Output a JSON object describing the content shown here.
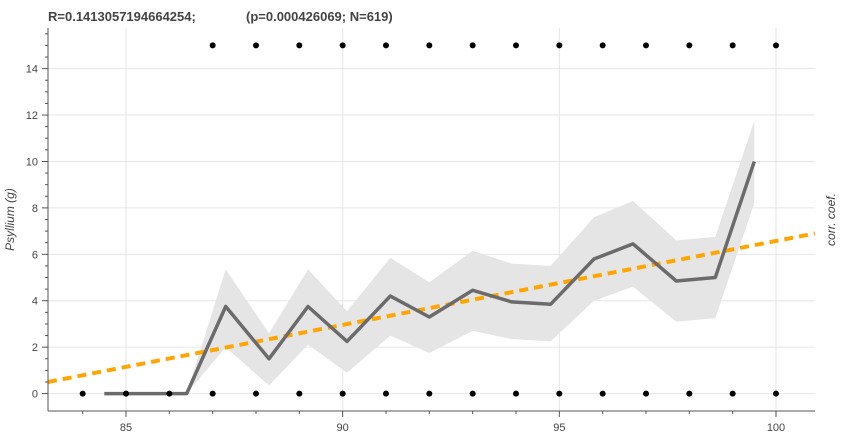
{
  "title": {
    "left": "R=0.1413057194664254;",
    "right": "(p=0.000426069; N=619)"
  },
  "chart_data": {
    "type": "line",
    "title": "R=0.1413057194664254;  (p=0.000426069; N=619)",
    "xlabel": "",
    "ylabel": "Psyllium (g)",
    "right_label": "corr. coef.",
    "xlim": [
      83.2,
      100.9
    ],
    "ylim": [
      -0.75,
      15.75
    ],
    "x_ticks": [
      85,
      90,
      95,
      100
    ],
    "y_ticks": [
      0,
      2,
      4,
      6,
      8,
      10,
      12,
      14
    ],
    "grid": true,
    "colors": {
      "mean_line": "#6b6b6b",
      "band": "#e5e5e5",
      "trend": "#ffa500",
      "points": "#000000",
      "grid": "#e6e6e6",
      "axis": "#555555"
    },
    "series": [
      {
        "kind": "mean_line",
        "x": [
          84.5,
          85.4,
          86.4,
          87.3,
          88.3,
          89.2,
          90.1,
          91.1,
          92.0,
          93.0,
          93.9,
          94.8,
          95.8,
          96.7,
          97.7,
          98.6,
          99.5
        ],
        "y": [
          0,
          0,
          0,
          3.75,
          1.5,
          3.75,
          2.25,
          4.2,
          3.3,
          4.45,
          3.95,
          3.85,
          5.8,
          6.45,
          4.85,
          5.0,
          10.0
        ]
      },
      {
        "kind": "band",
        "x": [
          84.5,
          85.4,
          86.4,
          87.3,
          88.3,
          89.2,
          90.1,
          91.1,
          92.0,
          93.0,
          93.9,
          94.8,
          95.8,
          96.7,
          97.7,
          98.6,
          99.5
        ],
        "lower": [
          0,
          0,
          0,
          2.0,
          0.35,
          2.1,
          0.9,
          2.5,
          1.75,
          2.7,
          2.35,
          2.25,
          4.0,
          4.6,
          3.1,
          3.25,
          8.2
        ],
        "upper": [
          0,
          0,
          0,
          5.35,
          2.6,
          5.35,
          3.55,
          5.85,
          4.8,
          6.15,
          5.6,
          5.5,
          7.6,
          8.3,
          6.6,
          6.75,
          11.75
        ]
      },
      {
        "kind": "trend",
        "x": [
          83.2,
          100.9
        ],
        "y": [
          0.5,
          6.9
        ]
      },
      {
        "kind": "points",
        "x": [
          84,
          85,
          86,
          87,
          88,
          89,
          90,
          91,
          92,
          93,
          94,
          95,
          96,
          97,
          98,
          99,
          100,
          87,
          88,
          89,
          90,
          91,
          92,
          93,
          94,
          95,
          96,
          97,
          98,
          99,
          100
        ],
        "y": [
          0,
          0,
          0,
          0,
          0,
          0,
          0,
          0,
          0,
          0,
          0,
          0,
          0,
          0,
          0,
          0,
          0,
          15,
          15,
          15,
          15,
          15,
          15,
          15,
          15,
          15,
          15,
          15,
          15,
          15,
          15
        ]
      }
    ]
  }
}
